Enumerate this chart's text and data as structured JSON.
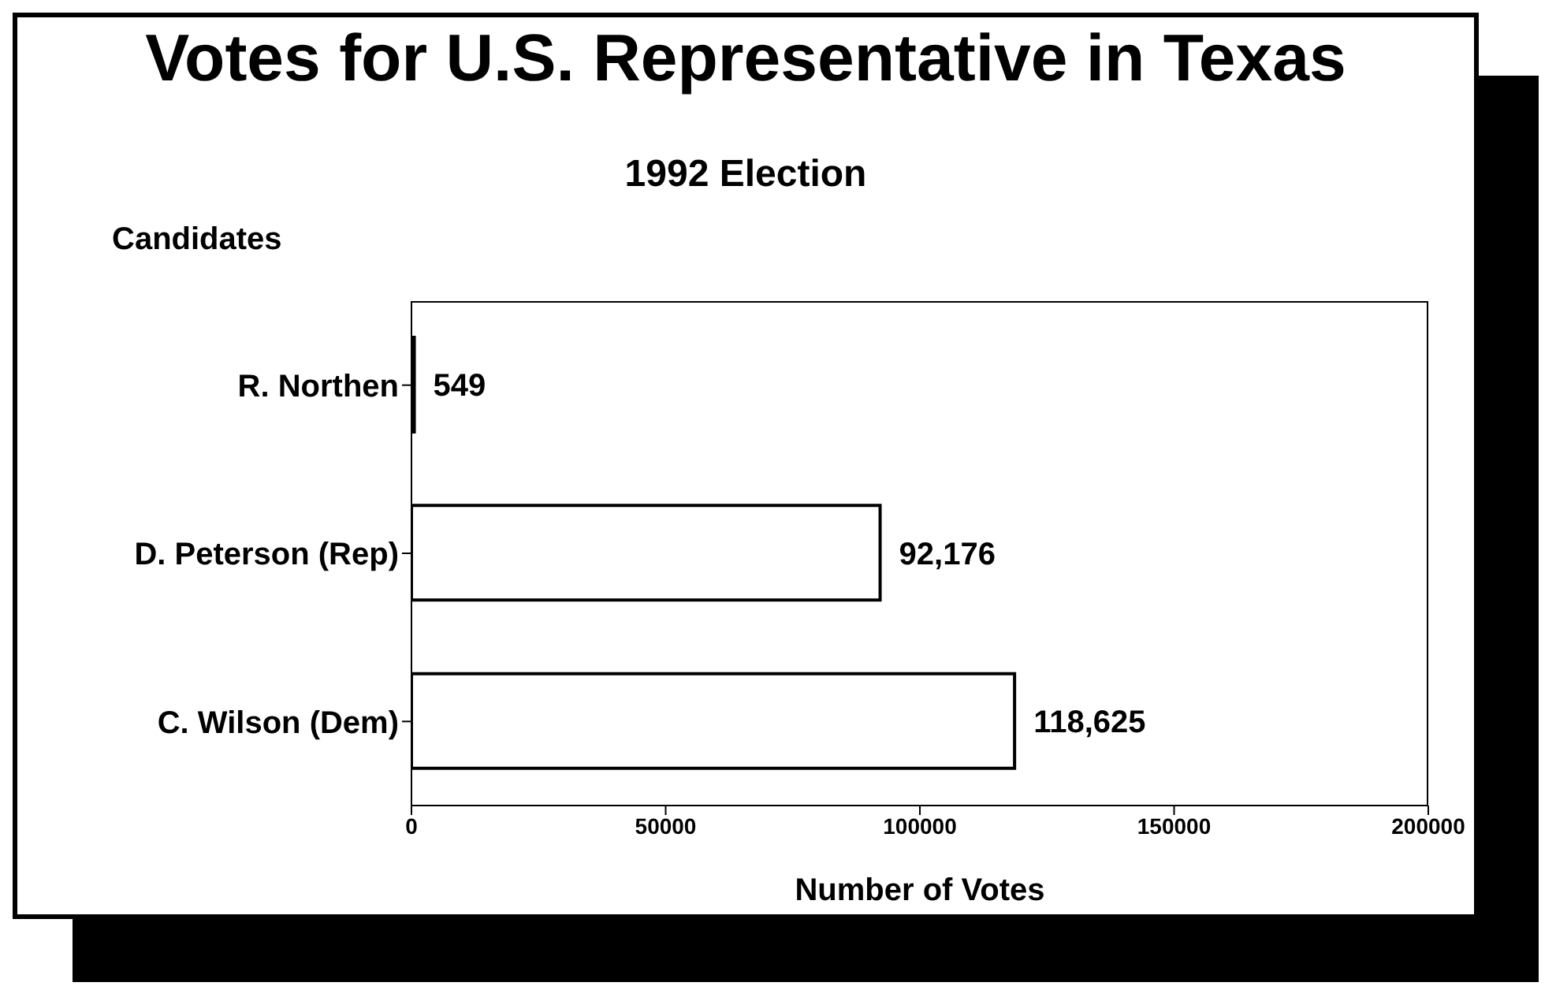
{
  "chart_data": {
    "type": "bar",
    "orientation": "horizontal",
    "title": "Votes for U.S. Representative in Texas",
    "subtitle": "1992 Election",
    "ylabel": "Candidates",
    "xlabel": "Number of Votes",
    "categories": [
      "R. Northen",
      "D. Peterson (Rep)",
      "C. Wilson (Dem)"
    ],
    "values": [
      549,
      92176,
      118625
    ],
    "color": "#ffffff",
    "value_labels": [
      "549",
      "92,176",
      "118,625"
    ],
    "xlim": [
      0,
      200000
    ],
    "xticks": [
      0,
      50000,
      100000,
      150000,
      200000
    ]
  }
}
